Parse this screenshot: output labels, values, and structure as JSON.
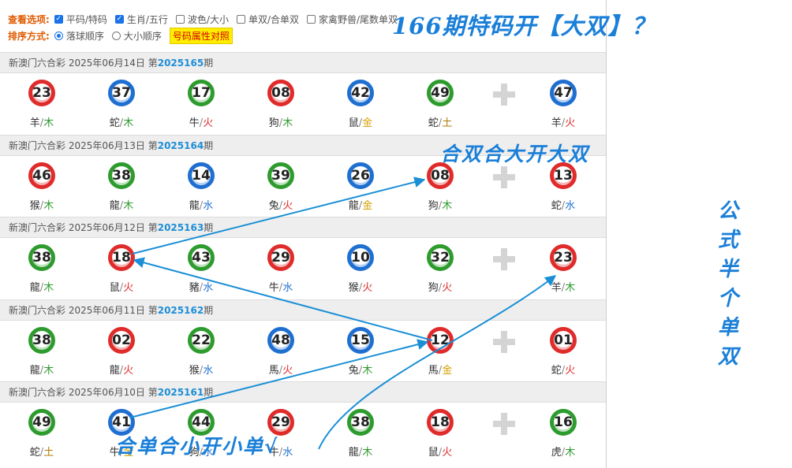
{
  "options": {
    "view_label": "查看选项:",
    "view_items": [
      {
        "label": "平码/特码",
        "checked": true
      },
      {
        "label": "生肖/五行",
        "checked": true
      },
      {
        "label": "波色/大小",
        "checked": false
      },
      {
        "label": "单双/合单双",
        "checked": false
      },
      {
        "label": "家禽野兽/尾数单双",
        "checked": false
      }
    ],
    "sort_label": "排序方式:",
    "sort_items": [
      {
        "label": "落球顺序",
        "selected": true
      },
      {
        "label": "大小顺序",
        "selected": false
      }
    ],
    "attr_button": "号码属性对照"
  },
  "draws": [
    {
      "prefix": "新澳门六合彩 2025年06月14日 第",
      "issue": "2025165",
      "suffix": "期",
      "balls": [
        {
          "num": "23",
          "color": "red",
          "zodiac": "羊",
          "element": "木",
          "el": "wood"
        },
        {
          "num": "37",
          "color": "blue",
          "zodiac": "蛇",
          "element": "木",
          "el": "wood"
        },
        {
          "num": "17",
          "color": "green",
          "zodiac": "牛",
          "element": "火",
          "el": "fire"
        },
        {
          "num": "08",
          "color": "red",
          "zodiac": "狗",
          "element": "木",
          "el": "wood"
        },
        {
          "num": "42",
          "color": "blue",
          "zodiac": "鼠",
          "element": "金",
          "el": "gold"
        },
        {
          "num": "49",
          "color": "green",
          "zodiac": "蛇",
          "element": "土",
          "el": "earth"
        },
        {
          "num": "47",
          "color": "blue",
          "zodiac": "羊",
          "element": "火",
          "el": "fire"
        }
      ]
    },
    {
      "prefix": "新澳门六合彩 2025年06月13日 第",
      "issue": "2025164",
      "suffix": "期",
      "balls": [
        {
          "num": "46",
          "color": "red",
          "zodiac": "猴",
          "element": "木",
          "el": "wood"
        },
        {
          "num": "38",
          "color": "green",
          "zodiac": "龍",
          "element": "木",
          "el": "wood"
        },
        {
          "num": "14",
          "color": "blue",
          "zodiac": "龍",
          "element": "水",
          "el": "water"
        },
        {
          "num": "39",
          "color": "green",
          "zodiac": "兔",
          "element": "火",
          "el": "fire"
        },
        {
          "num": "26",
          "color": "blue",
          "zodiac": "龍",
          "element": "金",
          "el": "gold"
        },
        {
          "num": "08",
          "color": "red",
          "zodiac": "狗",
          "element": "木",
          "el": "wood"
        },
        {
          "num": "13",
          "color": "red",
          "zodiac": "蛇",
          "element": "水",
          "el": "water"
        }
      ]
    },
    {
      "prefix": "新澳门六合彩 2025年06月12日 第",
      "issue": "2025163",
      "suffix": "期",
      "balls": [
        {
          "num": "38",
          "color": "green",
          "zodiac": "龍",
          "element": "木",
          "el": "wood"
        },
        {
          "num": "18",
          "color": "red",
          "zodiac": "鼠",
          "element": "火",
          "el": "fire"
        },
        {
          "num": "43",
          "color": "green",
          "zodiac": "豬",
          "element": "水",
          "el": "water"
        },
        {
          "num": "29",
          "color": "red",
          "zodiac": "牛",
          "element": "水",
          "el": "water"
        },
        {
          "num": "10",
          "color": "blue",
          "zodiac": "猴",
          "element": "火",
          "el": "fire"
        },
        {
          "num": "32",
          "color": "green",
          "zodiac": "狗",
          "element": "火",
          "el": "fire"
        },
        {
          "num": "23",
          "color": "red",
          "zodiac": "羊",
          "element": "木",
          "el": "wood"
        }
      ]
    },
    {
      "prefix": "新澳门六合彩 2025年06月11日 第",
      "issue": "2025162",
      "suffix": "期",
      "balls": [
        {
          "num": "38",
          "color": "green",
          "zodiac": "龍",
          "element": "木",
          "el": "wood"
        },
        {
          "num": "02",
          "color": "red",
          "zodiac": "龍",
          "element": "火",
          "el": "fire"
        },
        {
          "num": "22",
          "color": "green",
          "zodiac": "猴",
          "element": "水",
          "el": "water"
        },
        {
          "num": "48",
          "color": "blue",
          "zodiac": "馬",
          "element": "火",
          "el": "fire"
        },
        {
          "num": "15",
          "color": "blue",
          "zodiac": "兔",
          "element": "木",
          "el": "wood"
        },
        {
          "num": "12",
          "color": "red",
          "zodiac": "馬",
          "element": "金",
          "el": "gold"
        },
        {
          "num": "01",
          "color": "red",
          "zodiac": "蛇",
          "element": "火",
          "el": "fire"
        }
      ]
    },
    {
      "prefix": "新澳门六合彩 2025年06月10日 第",
      "issue": "2025161",
      "suffix": "期",
      "balls": [
        {
          "num": "49",
          "color": "green",
          "zodiac": "蛇",
          "element": "土",
          "el": "earth"
        },
        {
          "num": "41",
          "color": "blue",
          "zodiac": "牛",
          "element": "金",
          "el": "gold"
        },
        {
          "num": "44",
          "color": "green",
          "zodiac": "狗",
          "element": "水",
          "el": "water"
        },
        {
          "num": "29",
          "color": "red",
          "zodiac": "牛",
          "element": "水",
          "el": "water"
        },
        {
          "num": "38",
          "color": "green",
          "zodiac": "龍",
          "element": "木",
          "el": "wood"
        },
        {
          "num": "18",
          "color": "red",
          "zodiac": "鼠",
          "element": "火",
          "el": "fire"
        },
        {
          "num": "16",
          "color": "green",
          "zodiac": "虎",
          "element": "木",
          "el": "wood"
        }
      ]
    }
  ],
  "annotations": {
    "top": "166期特码开【大双】？",
    "mid": "合双合大开大双",
    "bottom": "合单合小开小单√",
    "side": "公式半个单双"
  },
  "colors": {
    "ball_red": "#e02b2b",
    "ball_blue": "#1f6fd1",
    "ball_green": "#2e9b2e",
    "annotation": "#1a7fd8",
    "issue_text": "#1e8ed6",
    "option_title": "#e05a00"
  }
}
